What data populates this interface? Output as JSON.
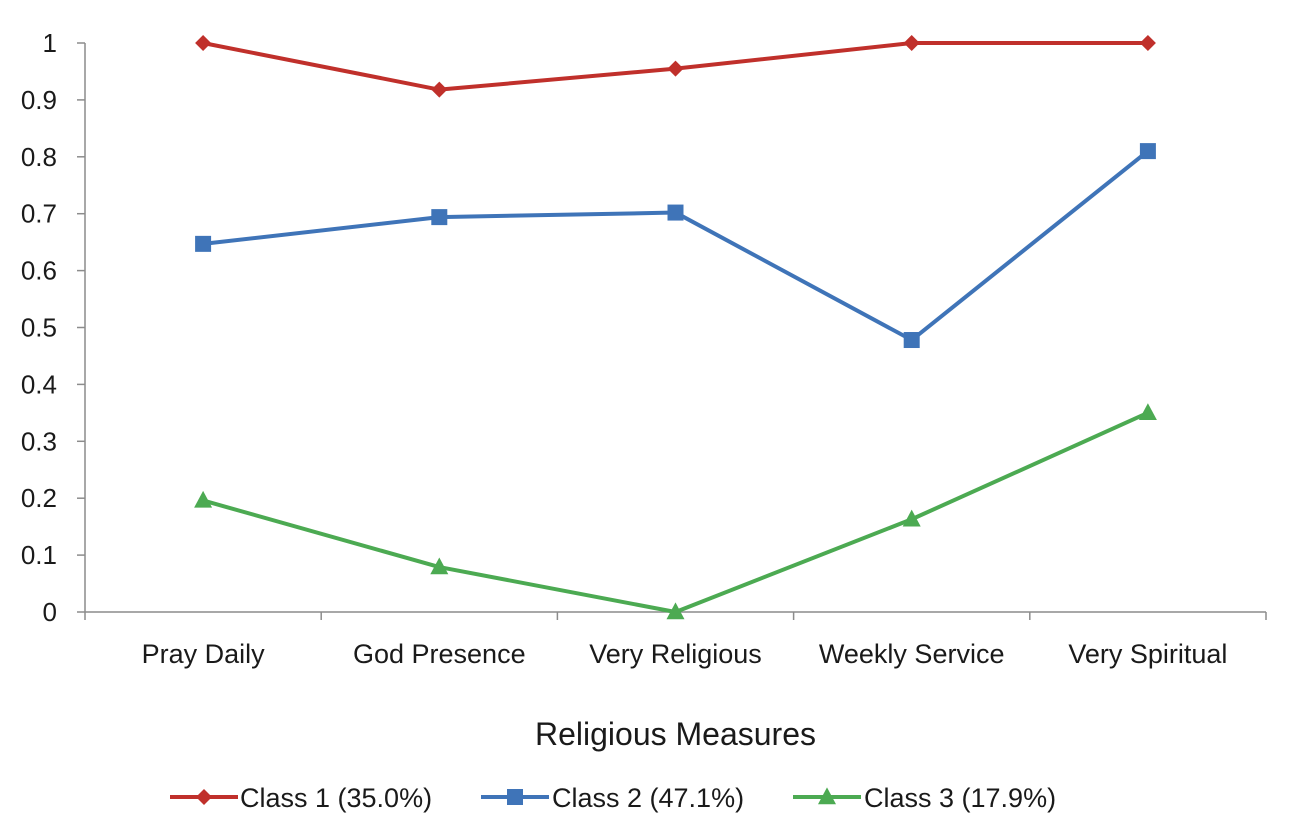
{
  "chart_data": {
    "type": "line",
    "title": "",
    "xlabel": "Religious Measures",
    "ylabel": "",
    "categories": [
      "Pray Daily",
      "God Presence",
      "Very Religious",
      "Weekly Service",
      "Very Spiritual"
    ],
    "ylim": [
      0,
      1
    ],
    "yticks": [
      "0",
      "0.1",
      "0.2",
      "0.3",
      "0.4",
      "0.5",
      "0.6",
      "0.7",
      "0.8",
      "0.9",
      "1"
    ],
    "grid": false,
    "legend_position": "bottom",
    "series": [
      {
        "name": "Class 1 (35.0%)",
        "values": [
          1.0,
          0.918,
          0.955,
          1.0,
          1.0
        ],
        "color": "#c0302b",
        "marker": "diamond"
      },
      {
        "name": "Class 2 (47.1%)",
        "values": [
          0.647,
          0.694,
          0.702,
          0.478,
          0.81
        ],
        "color": "#3f74b8",
        "marker": "square"
      },
      {
        "name": "Class 3 (17.9%)",
        "values": [
          0.196,
          0.079,
          0.0,
          0.163,
          0.35
        ],
        "color": "#4caa52",
        "marker": "triangle"
      }
    ]
  }
}
